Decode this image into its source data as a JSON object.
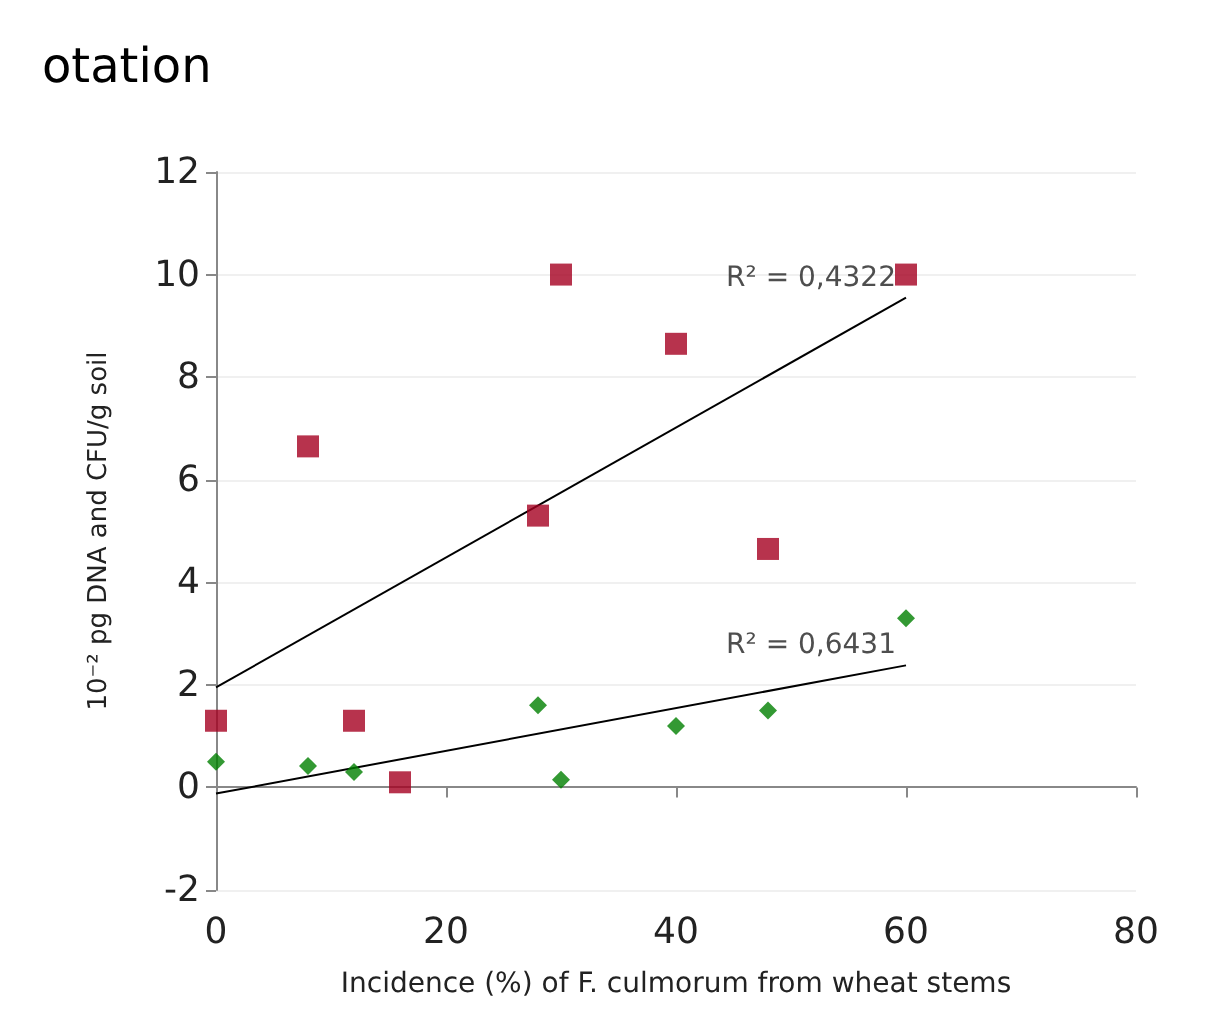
{
  "chart_data": {
    "type": "scatter",
    "title": "otation",
    "xlabel": "Incidence (%) of F. culmorum from wheat stems",
    "ylabel": "10⁻² pg DNA and CFU/g soil",
    "xlim": [
      0,
      80
    ],
    "xticks": [
      0,
      20,
      40,
      60,
      80
    ],
    "ylim": [
      -2,
      12
    ],
    "yticks": [
      -2,
      0,
      2,
      4,
      6,
      8,
      10,
      12
    ],
    "grid": "y",
    "series": [
      {
        "color": "#a50021",
        "marker": "square",
        "x": [
          0,
          8,
          12,
          16,
          28,
          30,
          40,
          48,
          60
        ],
        "values": [
          1.3,
          6.65,
          1.3,
          0.1,
          5.3,
          10,
          8.65,
          4.65,
          10
        ]
      },
      {
        "color": "#008000",
        "marker": "diamond",
        "x": [
          0,
          8,
          12,
          28,
          30,
          40,
          48,
          60
        ],
        "values": [
          0.5,
          0.42,
          0.3,
          1.6,
          0.15,
          1.2,
          1.5,
          3.3
        ]
      },
      {
        "type": "line",
        "color": "#000000",
        "marker": "none",
        "x": [
          0,
          60
        ],
        "values": [
          1.95,
          9.55
        ]
      },
      {
        "type": "line",
        "color": "#000000",
        "marker": "none",
        "x": [
          0,
          60
        ],
        "values": [
          -0.12,
          2.38
        ]
      }
    ],
    "annotations": [
      "R² = 0,4322",
      "R² = 0,6431"
    ]
  }
}
